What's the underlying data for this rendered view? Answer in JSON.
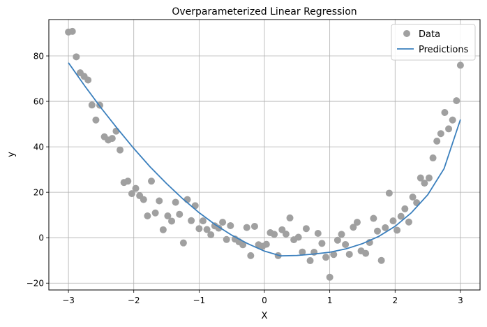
{
  "chart_data": {
    "type": "scatter",
    "title": "Overparameterized Linear Regression",
    "xlabel": "X",
    "ylabel": "y",
    "xlim": [
      -3.3,
      3.3
    ],
    "ylim": [
      -23,
      96
    ],
    "xticks": [
      -3,
      -2,
      -1,
      0,
      1,
      2,
      3
    ],
    "xtick_labels": [
      "−3",
      "−2",
      "−1",
      "0",
      "1",
      "2",
      "3"
    ],
    "yticks": [
      -20,
      0,
      20,
      40,
      60,
      80
    ],
    "ytick_labels": [
      "−20",
      "0",
      "20",
      "40",
      "60",
      "80"
    ],
    "grid": true,
    "legend_position": "top-right",
    "series": [
      {
        "name": "Data",
        "kind": "scatter",
        "color": "#a0a0a0",
        "x": [
          -3.0,
          -2.94,
          -2.88,
          -2.82,
          -2.76,
          -2.7,
          -2.64,
          -2.58,
          -2.52,
          -2.45,
          -2.39,
          -2.33,
          -2.27,
          -2.21,
          -2.15,
          -2.09,
          -2.03,
          -1.97,
          -1.91,
          -1.85,
          -1.79,
          -1.73,
          -1.67,
          -1.61,
          -1.55,
          -1.48,
          -1.42,
          -1.36,
          -1.3,
          -1.24,
          -1.18,
          -1.12,
          -1.06,
          -1.0,
          -0.94,
          -0.88,
          -0.82,
          -0.76,
          -0.7,
          -0.64,
          -0.58,
          -0.52,
          -0.45,
          -0.39,
          -0.33,
          -0.27,
          -0.21,
          -0.15,
          -0.09,
          -0.03,
          0.03,
          0.09,
          0.15,
          0.21,
          0.27,
          0.33,
          0.39,
          0.45,
          0.52,
          0.58,
          0.64,
          0.7,
          0.76,
          0.82,
          0.88,
          0.94,
          1.0,
          1.06,
          1.12,
          1.18,
          1.24,
          1.3,
          1.36,
          1.42,
          1.48,
          1.55,
          1.61,
          1.67,
          1.73,
          1.79,
          1.85,
          1.91,
          1.97,
          2.03,
          2.09,
          2.15,
          2.21,
          2.27,
          2.33,
          2.39,
          2.45,
          2.52,
          2.58,
          2.64,
          2.7,
          2.76,
          2.82,
          2.88,
          2.94,
          3.0
        ],
        "y": [
          90.5,
          90.8,
          79.6,
          72.6,
          71.0,
          69.4,
          58.4,
          51.8,
          58.3,
          44.4,
          43.0,
          43.7,
          46.9,
          38.6,
          24.3,
          24.9,
          19.4,
          21.7,
          18.5,
          16.8,
          9.6,
          24.9,
          10.9,
          16.2,
          3.5,
          9.6,
          7.3,
          15.6,
          10.3,
          -2.3,
          16.8,
          7.5,
          14.1,
          4.0,
          7.4,
          3.6,
          1.3,
          5.2,
          4.2,
          6.8,
          -0.8,
          5.3,
          -0.6,
          -1.8,
          -3.1,
          4.5,
          -7.9,
          5.0,
          -3.1,
          -3.8,
          -2.9,
          2.2,
          1.5,
          -7.9,
          3.5,
          1.6,
          8.7,
          -0.9,
          0.2,
          -6.3,
          4.0,
          -10.1,
          -6.4,
          1.9,
          -2.5,
          -8.6,
          -17.4,
          -7.4,
          -1.1,
          1.5,
          -3.0,
          -7.3,
          4.6,
          6.8,
          -5.8,
          -6.9,
          -2.1,
          8.5,
          2.9,
          -10.0,
          4.4,
          19.6,
          7.4,
          3.3,
          9.4,
          12.7,
          6.9,
          17.9,
          15.4,
          26.3,
          24.0,
          26.3,
          35.1,
          42.5,
          45.8,
          55.1,
          47.9,
          51.8,
          60.3,
          75.9
        ]
      },
      {
        "name": "Predictions",
        "kind": "line",
        "color": "#3a7fbd",
        "x": [
          -3.0,
          -2.75,
          -2.5,
          -2.25,
          -2.0,
          -1.75,
          -1.5,
          -1.25,
          -1.0,
          -0.75,
          -0.5,
          -0.25,
          0.0,
          0.25,
          0.5,
          0.75,
          1.0,
          1.25,
          1.5,
          1.75,
          2.0,
          2.25,
          2.5,
          2.75,
          3.0
        ],
        "y": [
          77.0,
          66.8,
          57.1,
          48.0,
          39.3,
          31.2,
          23.9,
          17.1,
          11.0,
          5.7,
          1.1,
          -2.7,
          -5.9,
          -8.0,
          -7.8,
          -7.2,
          -6.4,
          -4.9,
          -2.6,
          0.6,
          5.0,
          11.0,
          18.9,
          30.4,
          52.0
        ]
      }
    ]
  }
}
